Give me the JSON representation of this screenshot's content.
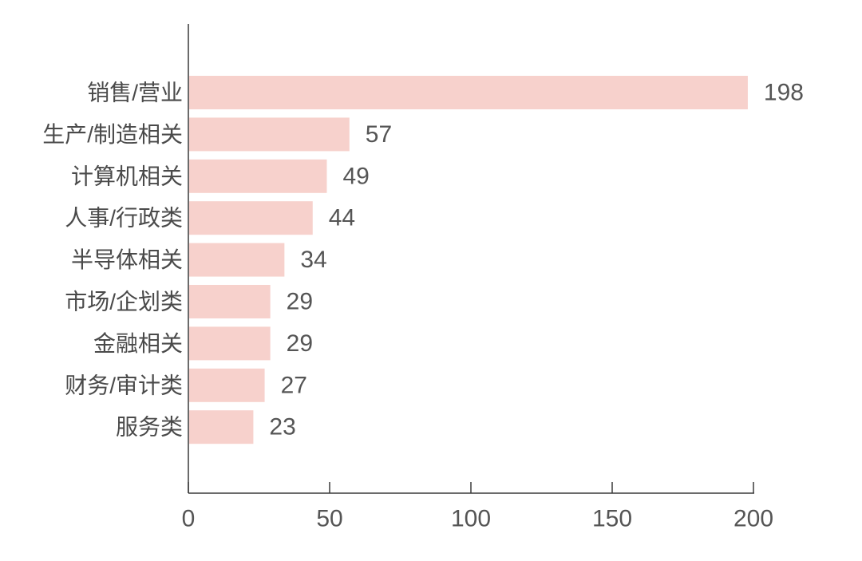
{
  "colors": {
    "bar": "#f7d1cc",
    "axis": "#3a3a3a",
    "text": "#555555",
    "background": "#ffffff"
  },
  "chart_data": {
    "type": "bar",
    "orientation": "horizontal",
    "title": "",
    "xlabel": "",
    "ylabel": "",
    "categories": [
      "销售/营业",
      "生产/制造相关",
      "计算机相关",
      "人事/行政类",
      "半导体相关",
      "市场/企划类",
      "金融相关",
      "财务/审计类",
      "服务类"
    ],
    "values": [
      198,
      57,
      49,
      44,
      34,
      29,
      29,
      27,
      23
    ],
    "xlim": [
      0,
      200
    ],
    "xticks": [
      0,
      50,
      100,
      150,
      200
    ],
    "grid": false,
    "legend": "none"
  }
}
